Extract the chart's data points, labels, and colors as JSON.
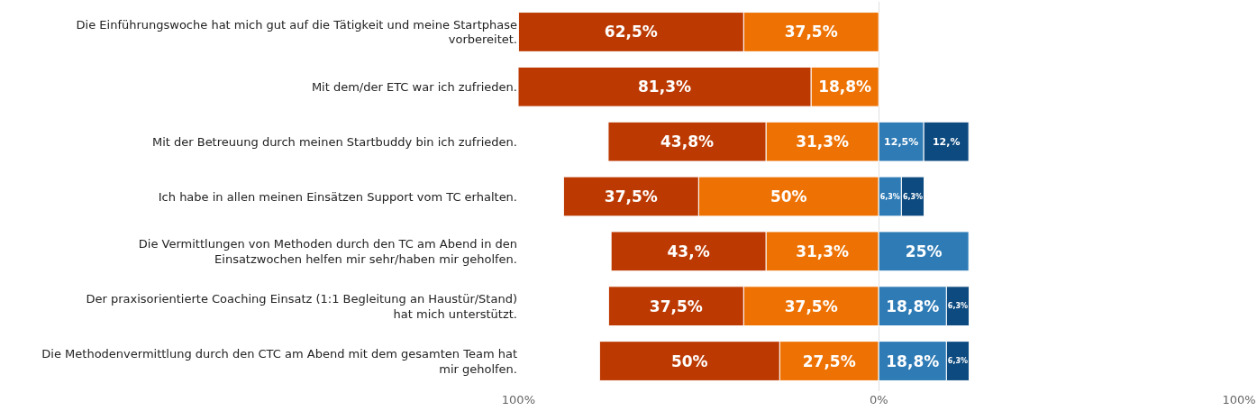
{
  "chart_data": {
    "type": "bar",
    "orientation": "horizontal",
    "categories": [
      "Die Einführungswoche hat mich gut auf die Tätigkeit und meine Startphase vorbereitet.",
      "Mit dem/der ETC war ich zufrieden.",
      "Mit der Betreuung durch meinen Startbuddy bin ich zufrieden.",
      "Ich habe in allen meinen Einsätzen Support vom TC erhalten.",
      "Die Vermittlungen von Methoden durch den TC am Abend in den Einsatzwochen helfen mir sehr/haben mir geholfen.",
      "Der praxisorientierte Coaching Einsatz (1:1 Begleitung an Haustür/Stand) hat mich unterstützt.",
      "Die Methodenvermittlung durch den CTC am Abend mit dem gesamten Team hat mir geholfen."
    ],
    "series": [
      {
        "color": "#ee7203",
        "values": [
          37.5,
          18.8,
          31.3,
          50,
          31.3,
          37.5,
          27.5
        ],
        "base": [
          -37.5,
          -18.8,
          -31.3,
          -50,
          -31.3,
          -37.5,
          -27.5
        ],
        "value_labels": [
          "37,5%",
          "18,8%",
          "31,3%",
          "50%",
          "31,3%",
          "37,5%",
          "27,5%"
        ]
      },
      {
        "color": "#bc3a02",
        "values": [
          62.5,
          81.3,
          43.8,
          37.5,
          43,
          37.5,
          50
        ],
        "base": [
          -100,
          -100.1,
          -75.1,
          -87.5,
          -74.3,
          -75,
          -77.5
        ],
        "value_labels": [
          "62,5%",
          "81,3%",
          "43,8%",
          "37,5%",
          "43,%",
          "37,5%",
          "50%"
        ]
      },
      {
        "color": "#2e7bb6",
        "values": [
          null,
          null,
          12.5,
          6.3,
          25,
          18.8,
          18.8
        ],
        "base": [
          null,
          null,
          0,
          0,
          0,
          0,
          0
        ],
        "value_labels": [
          null,
          null,
          "12,5%",
          "6,3%",
          "25%",
          "18,8%",
          "18,8%"
        ]
      },
      {
        "color": "#0d4a7f",
        "values": [
          null,
          null,
          12.5,
          6.3,
          null,
          6.3,
          6.3
        ],
        "base": [
          null,
          null,
          12.5,
          6.3,
          null,
          18.8,
          18.8
        ],
        "value_labels": [
          null,
          null,
          "12,%",
          "6,3%",
          null,
          "6,3%",
          "6,3%"
        ]
      }
    ],
    "xlim": [
      -100.1,
      100
    ],
    "xticks": [
      {
        "value": -100,
        "label": "100%"
      },
      {
        "value": 0,
        "label": "0%"
      },
      {
        "value": 100,
        "label": "100%"
      }
    ],
    "grid": "x"
  }
}
